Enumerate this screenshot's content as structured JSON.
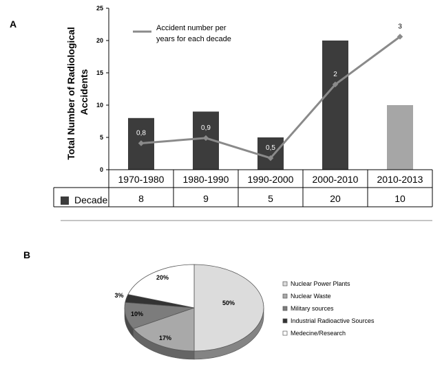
{
  "panel_a": {
    "label": "A",
    "line_legend": [
      "Accident  number  per",
      "years for each decade"
    ],
    "table_series_label": "Decade"
  },
  "panel_b": {
    "label": "B"
  },
  "colors": {
    "dark_bar": "#3c3c3c",
    "light_bar": "#a6a6a6",
    "line": "#8a8a8a",
    "grid": "#cfcfcf",
    "pie_slices": [
      "#dcdcdc",
      "#a9a9a9",
      "#7c7c7c",
      "#333333",
      "#ffffff"
    ]
  },
  "chart_data": [
    {
      "type": "bar",
      "ylabel": "Total Number of Radiological Accidents",
      "ylim": [
        0,
        25
      ],
      "yticks": [
        0,
        5,
        10,
        15,
        20,
        25
      ],
      "categories": [
        "1970-1980",
        "1980-1990",
        "1990-2000",
        "2000-2010",
        "2010-2013"
      ],
      "series": [
        {
          "name": "Decade",
          "values": [
            8,
            9,
            5,
            20,
            10
          ]
        }
      ],
      "line_series": {
        "name": "Accident  number  per years for each decade",
        "labels": [
          "0,8",
          "0,9",
          "0,5",
          "2",
          "3"
        ],
        "values": [
          0.8,
          0.9,
          0.5,
          2,
          3
        ],
        "y_plot": [
          4.1,
          4.9,
          1.8,
          13.2,
          20.6
        ]
      },
      "grid": false,
      "legend": "top-left",
      "data_table": true
    },
    {
      "type": "pie",
      "labels": [
        "Nuclear Power Plants",
        "Nuclear Waste",
        "Military sources",
        "Industrial Radioactive Sources",
        "Medecine/Research"
      ],
      "values": [
        50,
        17,
        10,
        3,
        20
      ],
      "value_labels": [
        "50%",
        "17%",
        "10%",
        "3%",
        "20%"
      ],
      "legend": "right"
    }
  ]
}
